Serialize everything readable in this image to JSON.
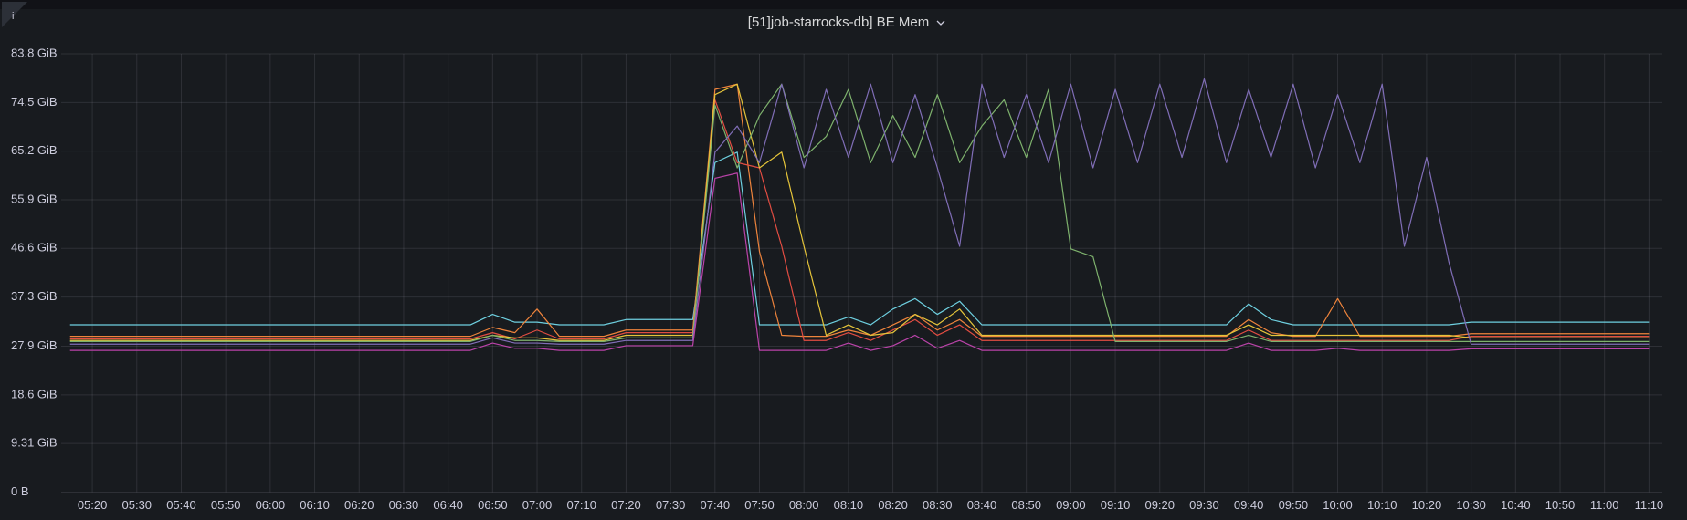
{
  "chart_data": {
    "type": "line",
    "title": "[51]job-starrocks-db] BE Mem",
    "x": [
      "05:15",
      "05:20",
      "05:25",
      "05:30",
      "05:35",
      "05:40",
      "05:45",
      "05:50",
      "05:55",
      "06:00",
      "06:05",
      "06:10",
      "06:15",
      "06:20",
      "06:25",
      "06:30",
      "06:35",
      "06:40",
      "06:45",
      "06:50",
      "06:55",
      "07:00",
      "07:05",
      "07:10",
      "07:15",
      "07:20",
      "07:25",
      "07:30",
      "07:35",
      "07:40",
      "07:45",
      "07:50",
      "07:55",
      "08:00",
      "08:05",
      "08:10",
      "08:15",
      "08:20",
      "08:25",
      "08:30",
      "08:35",
      "08:40",
      "08:45",
      "08:50",
      "08:55",
      "09:00",
      "09:05",
      "09:10",
      "09:15",
      "09:20",
      "09:25",
      "09:30",
      "09:35",
      "09:40",
      "09:45",
      "09:50",
      "09:55",
      "10:00",
      "10:05",
      "10:10",
      "10:15",
      "10:20",
      "10:25",
      "10:30",
      "10:35",
      "10:40",
      "10:45",
      "10:50",
      "10:55",
      "11:00",
      "11:05",
      "11:10"
    ],
    "xlim": [
      "05:13",
      "11:13"
    ],
    "xticks": [
      "05:20",
      "05:30",
      "05:40",
      "05:50",
      "06:00",
      "06:10",
      "06:20",
      "06:30",
      "06:40",
      "06:50",
      "07:00",
      "07:10",
      "07:20",
      "07:30",
      "07:40",
      "07:50",
      "08:00",
      "08:10",
      "08:20",
      "08:30",
      "08:40",
      "08:50",
      "09:00",
      "09:10",
      "09:20",
      "09:30",
      "09:40",
      "09:50",
      "10:00",
      "10:10",
      "10:20",
      "10:30",
      "10:40",
      "10:50",
      "11:00",
      "11:10"
    ],
    "ylim": [
      0,
      83.8
    ],
    "yticks": [
      {
        "value": 0,
        "label": "0 B"
      },
      {
        "value": 9.31,
        "label": "9.31 GiB"
      },
      {
        "value": 18.6,
        "label": "18.6 GiB"
      },
      {
        "value": 27.9,
        "label": "27.9 GiB"
      },
      {
        "value": 37.3,
        "label": "37.3 GiB"
      },
      {
        "value": 46.6,
        "label": "46.6 GiB"
      },
      {
        "value": 55.9,
        "label": "55.9 GiB"
      },
      {
        "value": 65.2,
        "label": "65.2 GiB"
      },
      {
        "value": 74.5,
        "label": "74.5 GiB"
      },
      {
        "value": 83.8,
        "label": "83.8 GiB"
      }
    ],
    "grid": true,
    "series": [
      {
        "color": "#6ed0e0",
        "values": [
          32,
          32,
          32,
          32,
          32,
          32,
          32,
          32,
          32,
          32,
          32,
          32,
          32,
          32,
          32,
          32,
          32,
          32,
          32,
          34,
          32.5,
          32.5,
          32,
          32,
          32,
          33,
          33,
          33,
          33,
          63,
          65,
          32,
          32,
          32,
          32,
          33.5,
          32,
          35,
          37,
          34,
          36.5,
          32,
          32,
          32,
          32,
          32,
          32,
          32,
          32,
          32,
          32,
          32,
          32,
          36,
          33,
          32,
          32,
          32,
          32,
          32,
          32,
          32,
          32,
          32.5,
          32.5,
          32.5,
          32.5,
          32.5,
          32.5,
          32.5,
          32.5,
          32.5
        ]
      },
      {
        "color": "#ef843c",
        "values": [
          29.8,
          29.8,
          29.8,
          29.8,
          29.8,
          29.8,
          29.8,
          29.8,
          29.8,
          29.8,
          29.8,
          29.8,
          29.8,
          29.8,
          29.8,
          29.8,
          29.8,
          29.8,
          29.8,
          31.5,
          30.5,
          35,
          29.8,
          29.8,
          29.8,
          31,
          31,
          31,
          31,
          77,
          78,
          46,
          30,
          29.8,
          29.8,
          31,
          30,
          32,
          34,
          31,
          33,
          29.8,
          29.8,
          29.8,
          29.8,
          29.8,
          29.8,
          29.8,
          29.8,
          29.8,
          29.8,
          29.8,
          29.8,
          33,
          30.5,
          29.8,
          29.8,
          37,
          29.8,
          29.8,
          29.8,
          29.8,
          29.8,
          30.3,
          30.3,
          30.3,
          30.3,
          30.3,
          30.3,
          30.3,
          30.3,
          30.3
        ]
      },
      {
        "color": "#e24d42",
        "values": [
          29.3,
          29.3,
          29.3,
          29.3,
          29.3,
          29.3,
          29.3,
          29.3,
          29.3,
          29.3,
          29.3,
          29.3,
          29.3,
          29.3,
          29.3,
          29.3,
          29.3,
          29.3,
          29.3,
          30.5,
          29.3,
          31,
          29.3,
          29.3,
          29.3,
          30.5,
          30.5,
          30.5,
          30.5,
          75,
          63,
          62,
          47,
          29,
          29,
          30.5,
          29,
          31,
          33,
          30,
          32,
          29,
          29,
          29,
          29,
          29,
          29,
          29,
          29,
          29,
          29,
          29,
          29,
          31,
          29,
          29,
          29,
          29,
          29,
          29,
          29,
          29,
          29,
          29.8,
          29.8,
          29.8,
          29.8,
          29.8,
          29.8,
          29.8,
          29.8,
          29.8
        ]
      },
      {
        "color": "#e5c43a",
        "values": [
          29,
          29,
          29,
          29,
          29,
          29,
          29,
          29,
          29,
          29,
          29,
          29,
          29,
          29,
          29,
          29,
          29,
          29,
          29,
          30,
          29.5,
          29.5,
          29,
          29,
          29,
          30,
          30,
          30,
          30,
          76,
          78,
          62,
          65,
          47,
          30,
          32,
          30,
          30.5,
          34,
          32,
          35,
          30,
          30,
          30,
          30,
          30,
          30,
          30,
          30,
          30,
          30,
          30,
          30,
          32,
          30,
          30,
          30,
          30,
          30,
          30,
          30,
          30,
          30,
          29.5,
          29.5,
          29.5,
          29.5,
          29.5,
          29.5,
          29.5,
          29.5,
          29.5
        ]
      },
      {
        "color": "#7eb26d",
        "values": [
          28.8,
          28.8,
          28.8,
          28.8,
          28.8,
          28.8,
          28.8,
          28.8,
          28.8,
          28.8,
          28.8,
          28.8,
          28.8,
          28.8,
          28.8,
          28.8,
          28.8,
          28.8,
          28.8,
          30,
          29,
          29,
          28.8,
          28.8,
          28.8,
          29.5,
          29.5,
          29.5,
          29.5,
          74,
          62,
          72,
          78,
          64,
          68,
          77,
          63,
          72,
          64,
          76,
          63,
          70,
          75,
          64,
          77,
          46.5,
          45,
          28.8,
          28.8,
          28.8,
          28.8,
          28.8,
          28.8,
          30,
          28.8,
          28.8,
          28.8,
          28.8,
          28.8,
          28.8,
          28.8,
          28.8,
          28.8,
          28.8,
          28.8,
          28.8,
          28.8,
          28.8,
          28.8,
          28.8,
          28.8,
          28.8
        ]
      },
      {
        "color": "#806eb7",
        "values": [
          28.3,
          28.3,
          28.3,
          28.3,
          28.3,
          28.3,
          28.3,
          28.3,
          28.3,
          28.3,
          28.3,
          28.3,
          28.3,
          28.3,
          28.3,
          28.3,
          28.3,
          28.3,
          28.3,
          29.5,
          28.5,
          28.5,
          28.3,
          28.3,
          28.3,
          29,
          29,
          29,
          29,
          65,
          70,
          63,
          78,
          62,
          77,
          64,
          78,
          63,
          76,
          62,
          47,
          78,
          64,
          76,
          63,
          78,
          62,
          77,
          63,
          78,
          64,
          79,
          63,
          77,
          64,
          78,
          62,
          76,
          63,
          78,
          47,
          64,
          44,
          28.3,
          28.3,
          28.3,
          28.3,
          28.3,
          28.3,
          28.3,
          28.3,
          28.3
        ]
      },
      {
        "color": "#ba43a9",
        "values": [
          27.1,
          27.1,
          27.1,
          27.1,
          27.1,
          27.1,
          27.1,
          27.1,
          27.1,
          27.1,
          27.1,
          27.1,
          27.1,
          27.1,
          27.1,
          27.1,
          27.1,
          27.1,
          27.1,
          28.5,
          27.5,
          27.5,
          27.1,
          27.1,
          27.1,
          28,
          28,
          28,
          28,
          60,
          61,
          27.1,
          27.1,
          27.1,
          27.1,
          28.5,
          27.1,
          28,
          30,
          27.5,
          29,
          27.1,
          27.1,
          27.1,
          27.1,
          27.1,
          27.1,
          27.1,
          27.1,
          27.1,
          27.1,
          27.1,
          27.1,
          28.5,
          27.1,
          27.1,
          27.1,
          27.5,
          27.1,
          27.1,
          27.1,
          27.1,
          27.1,
          27.4,
          27.4,
          27.4,
          27.4,
          27.4,
          27.4,
          27.4,
          27.4,
          27.4
        ]
      }
    ]
  }
}
